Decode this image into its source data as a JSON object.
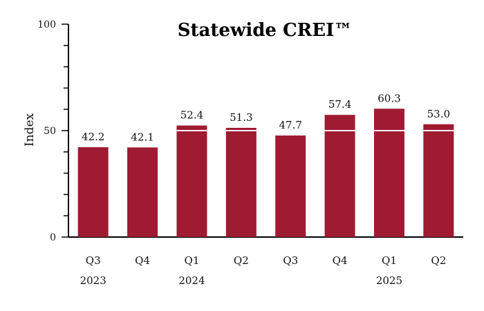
{
  "chart_data": {
    "type": "bar",
    "title": "Statewide CREI™",
    "ylabel": "Index",
    "xlabel": "",
    "ylim": [
      0,
      100
    ],
    "yticks": [
      "0",
      "50",
      "100"
    ],
    "grid": false,
    "categories": [
      "Q3",
      "Q4",
      "Q1",
      "Q2",
      "Q3",
      "Q4",
      "Q1",
      "Q2"
    ],
    "year_labels": [
      "2023",
      "",
      "2024",
      "",
      "",
      "",
      "2025",
      ""
    ],
    "values": [
      42.2,
      42.1,
      52.4,
      51.3,
      47.7,
      57.4,
      60.3,
      53.0
    ],
    "value_labels": [
      "42.2",
      "42.1",
      "52.4",
      "51.3",
      "47.7",
      "57.4",
      "60.3",
      "53.0"
    ],
    "reference_line": 50,
    "bar_color": "#9e1b32",
    "reference_line_color": "#ffffff"
  }
}
